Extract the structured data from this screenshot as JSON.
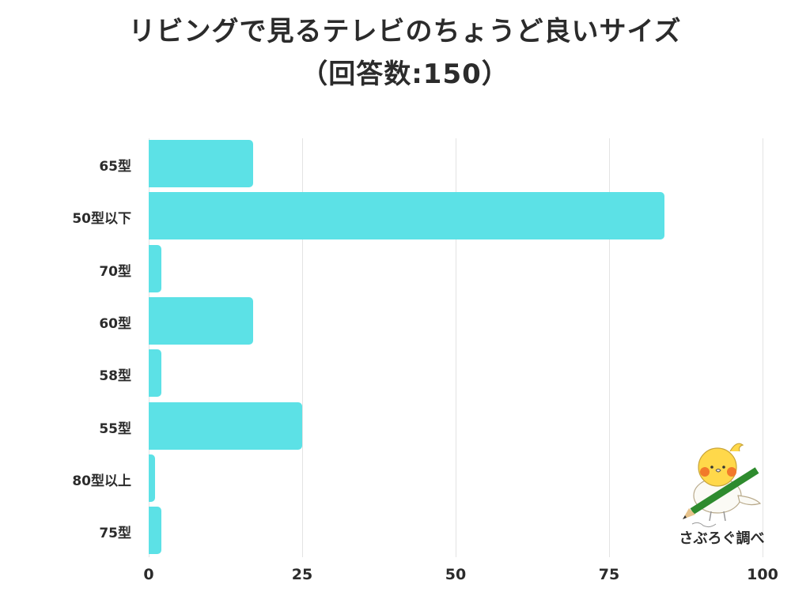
{
  "title": {
    "line1": "リビングで見るテレビのちょうど良いサイズ",
    "line2": "（回答数:150）"
  },
  "colors": {
    "bar": "#5ce1e6",
    "grid": "#e3e3e3",
    "text": "#2b2b2b"
  },
  "watermark": {
    "label": "さぶろぐ調べ",
    "icon": "bird-with-pencil-icon"
  },
  "chart_data": {
    "type": "bar",
    "orientation": "horizontal",
    "title": "リビングで見るテレビのちょうど良いサイズ（回答数:150）",
    "categories": [
      "65型",
      "50型以下",
      "70型",
      "60型",
      "58型",
      "55型",
      "80型以上",
      "75型"
    ],
    "values": [
      17,
      84,
      2,
      17,
      2,
      25,
      1,
      2
    ],
    "xlabel": "",
    "ylabel": "",
    "xlim": [
      0,
      100
    ],
    "xticks": [
      "0",
      "25",
      "50",
      "75",
      "100"
    ],
    "grid": true,
    "legend": "none"
  }
}
